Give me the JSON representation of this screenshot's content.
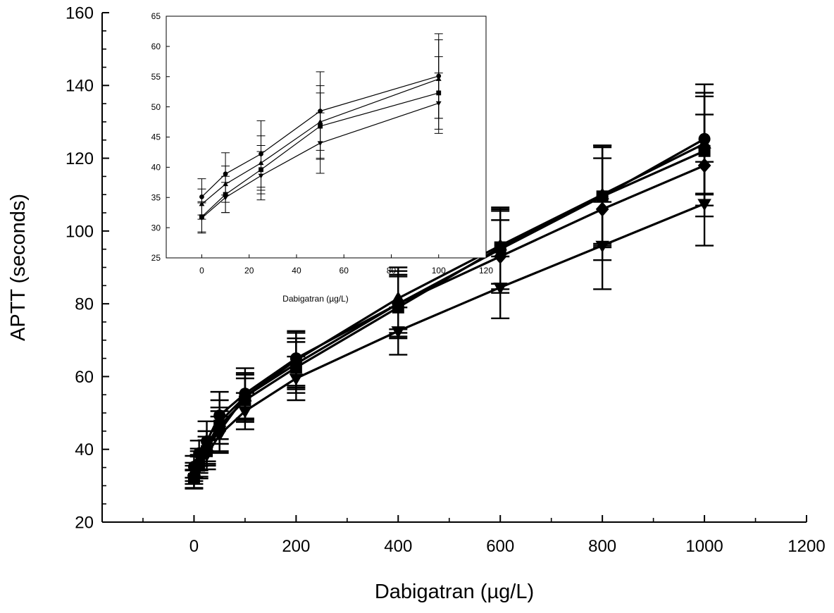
{
  "chart_data": [
    {
      "type": "line",
      "role": "main",
      "xlabel": "Dabigatran (µg/L)",
      "ylabel": "APTT (seconds)",
      "xlim": [
        -180,
        1200
      ],
      "ylim": [
        20,
        160
      ],
      "xticks": [
        0,
        200,
        400,
        600,
        800,
        1000,
        1200
      ],
      "yticks": [
        20,
        40,
        60,
        80,
        100,
        120,
        140,
        160
      ],
      "x": [
        0,
        10,
        25,
        50,
        100,
        200,
        400,
        600,
        800,
        1000
      ],
      "grid": false,
      "series": [
        {
          "marker": "circle",
          "values": [
            35.2,
            38.9,
            42.2,
            49.3,
            55.3,
            65.0,
            80.0,
            95.0,
            109.5,
            125.3
          ],
          "errors": [
            3.0,
            3.5,
            5.5,
            6.5,
            7.0,
            7.5,
            9.0,
            11.0,
            13.5,
            15.0
          ]
        },
        {
          "marker": "triangle-up",
          "values": [
            33.8,
            37.2,
            40.5,
            47.5,
            54.5,
            64.5,
            81.5,
            96.0,
            110.0,
            124.0
          ],
          "errors": [
            2.5,
            3.0,
            4.5,
            6.0,
            6.5,
            7.5,
            8.5,
            10.5,
            13.5,
            14.0
          ]
        },
        {
          "marker": "square",
          "values": [
            31.9,
            35.5,
            39.5,
            46.5,
            53.5,
            62.5,
            79.0,
            95.5,
            109.5,
            122.0
          ],
          "errors": [
            2.5,
            3.0,
            4.0,
            5.0,
            6.0,
            7.0,
            8.5,
            10.0,
            14.0,
            15.0
          ]
        },
        {
          "marker": "diamond",
          "values": [
            33.0,
            36.5,
            40.5,
            45.0,
            54.5,
            63.5,
            80.0,
            93.0,
            106.0,
            118.0
          ],
          "errors": [
            2.5,
            3.0,
            4.5,
            5.5,
            6.0,
            7.0,
            8.0,
            10.0,
            14.0,
            14.0
          ]
        },
        {
          "marker": "triangle-down",
          "values": [
            31.7,
            35.0,
            38.5,
            44.0,
            50.5,
            59.5,
            72.5,
            84.5,
            96.0,
            107.5
          ],
          "errors": [
            2.5,
            3.0,
            4.0,
            5.0,
            5.0,
            6.0,
            6.5,
            8.5,
            12.0,
            11.5
          ]
        }
      ]
    },
    {
      "type": "line",
      "role": "inset",
      "xlabel": "Dabigatran (µg/L)",
      "ylabel": "",
      "xlim": [
        -15,
        120
      ],
      "ylim": [
        25,
        65
      ],
      "xticks": [
        0,
        20,
        40,
        60,
        80,
        100,
        120
      ],
      "yticks": [
        25,
        30,
        35,
        40,
        45,
        50,
        55,
        60,
        65
      ],
      "x": [
        0,
        10,
        25,
        50,
        100
      ],
      "grid": false,
      "series": [
        {
          "marker": "circle",
          "values": [
            35.1,
            38.9,
            42.2,
            49.3,
            55.1
          ],
          "errors": [
            3.0,
            3.5,
            5.5,
            6.5,
            7.0
          ]
        },
        {
          "marker": "triangle-up",
          "values": [
            33.9,
            37.2,
            40.7,
            47.5,
            54.6
          ],
          "errors": [
            2.5,
            3.0,
            4.5,
            6.0,
            6.5
          ]
        },
        {
          "marker": "square",
          "values": [
            31.8,
            35.5,
            39.6,
            46.8,
            52.3
          ],
          "errors": [
            2.5,
            3.0,
            4.0,
            5.5,
            6.0
          ]
        },
        {
          "marker": "triangle-down",
          "values": [
            31.6,
            35.0,
            38.6,
            44.0,
            50.6
          ],
          "errors": [
            2.5,
            2.5,
            4.0,
            5.0,
            5.0
          ]
        }
      ]
    }
  ]
}
